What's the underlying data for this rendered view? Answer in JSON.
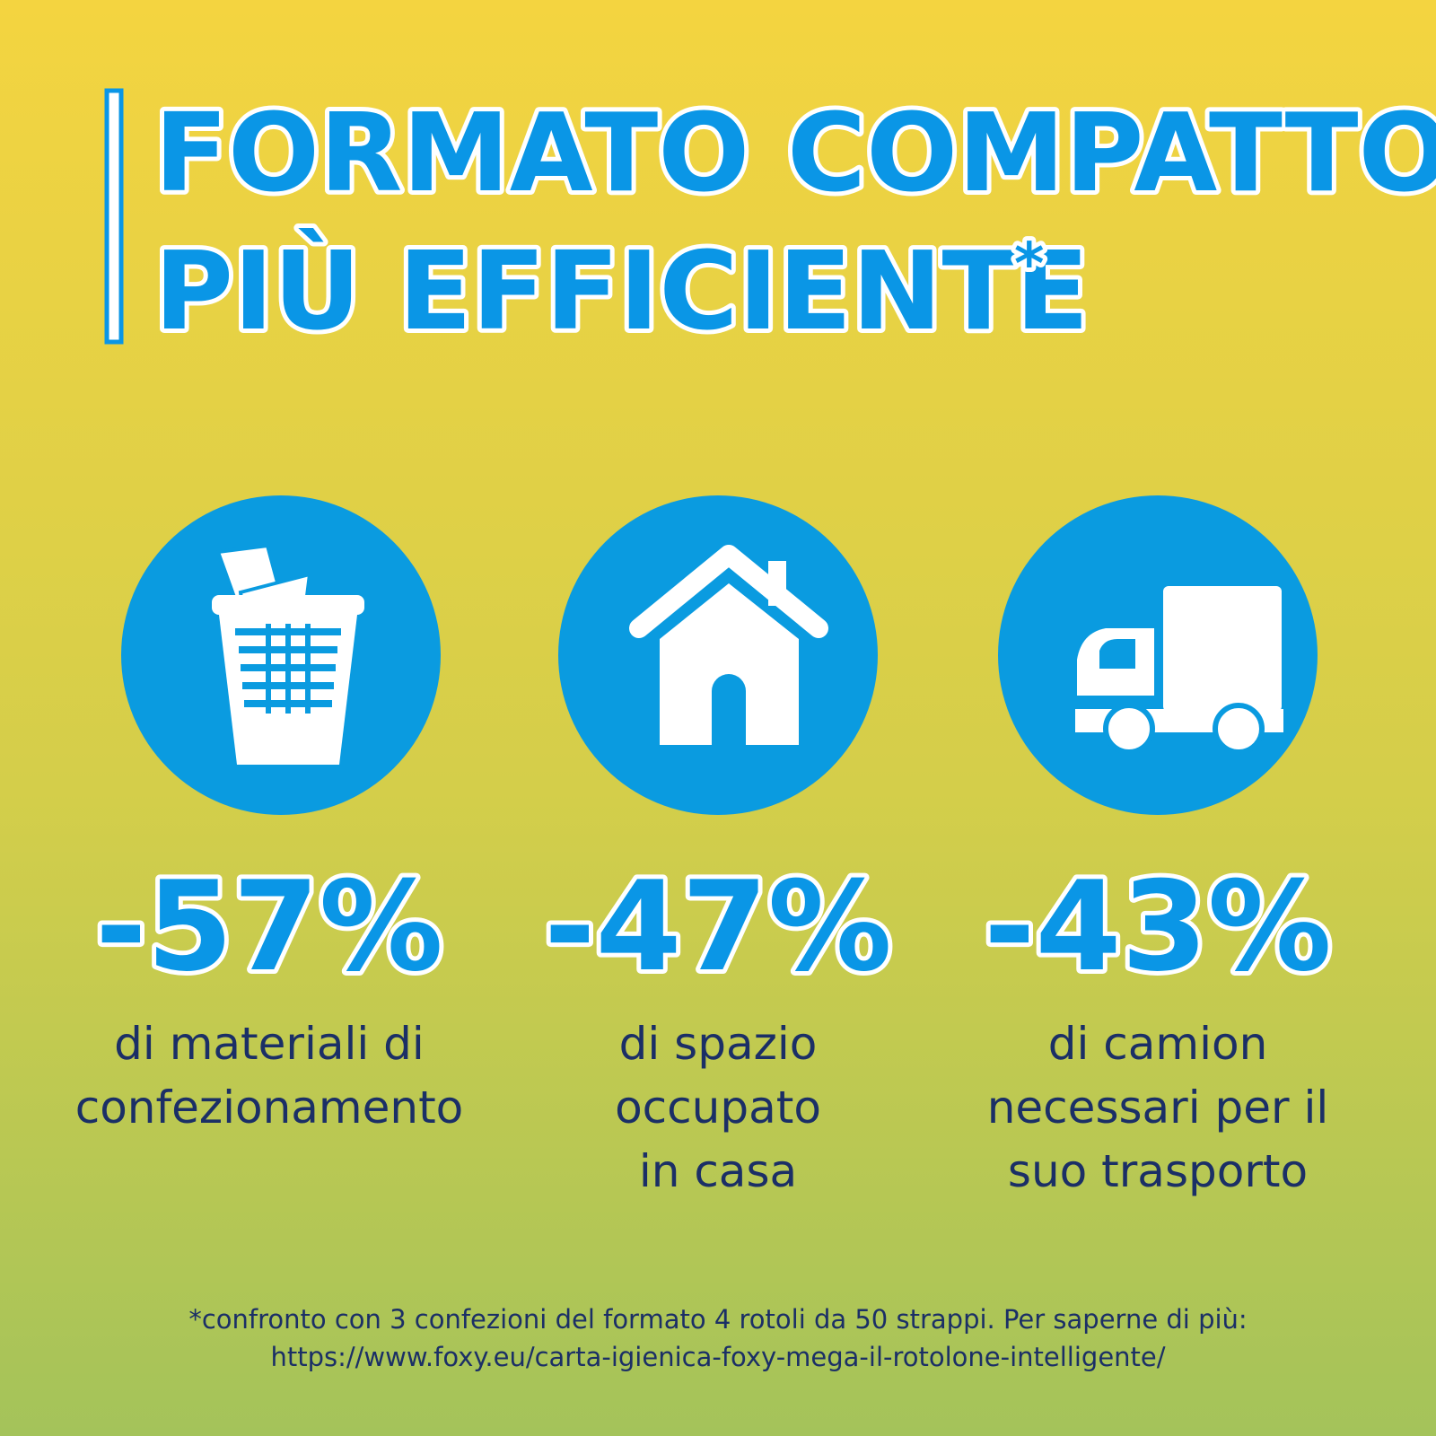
{
  "header": {
    "title_lines": [
      "FORMATO COMPATTO",
      "PIÙ EFFICIENTE"
    ],
    "asterisk": "*"
  },
  "stats": [
    {
      "value": "-57%",
      "lines": [
        "di materiali di",
        "confezionamento"
      ]
    },
    {
      "value": "-47%",
      "lines": [
        "di spazio",
        "occupato",
        "in casa"
      ]
    },
    {
      "value": "-43%",
      "lines": [
        "di camion",
        "necessari per il",
        "suo trasporto"
      ]
    }
  ],
  "footnote": {
    "lines": [
      "*confronto con 3 confezioni del formato 4 rotoli da 50 strappi. Per saperne di più:",
      "https://www.foxy.eu/carta-igienica-foxy-mega-il-rotolone-intelligente/"
    ]
  }
}
